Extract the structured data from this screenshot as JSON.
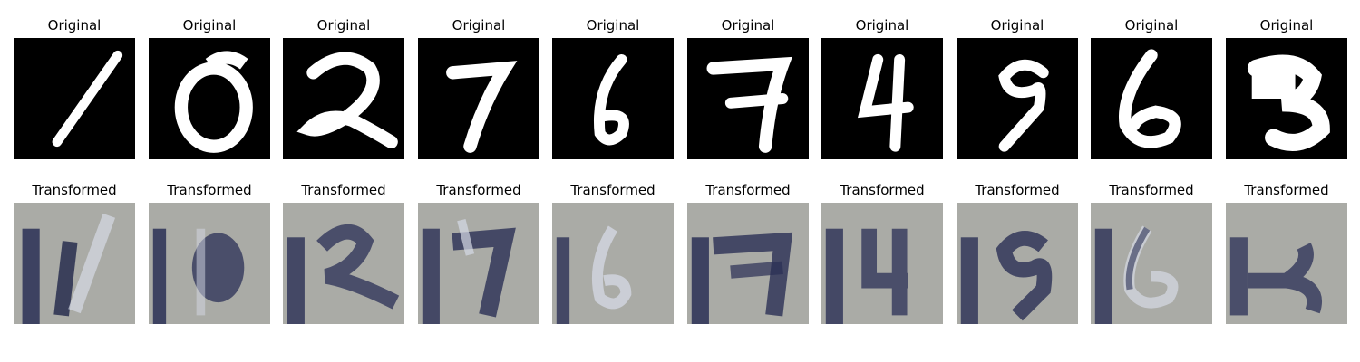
{
  "panels": [
    {
      "original_title": "Original",
      "transformed_title": "Transformed",
      "digit": "1"
    },
    {
      "original_title": "Original",
      "transformed_title": "Transformed",
      "digit": "0"
    },
    {
      "original_title": "Original",
      "transformed_title": "Transformed",
      "digit": "2"
    },
    {
      "original_title": "Original",
      "transformed_title": "Transformed",
      "digit": "7"
    },
    {
      "original_title": "Original",
      "transformed_title": "Transformed",
      "digit": "6"
    },
    {
      "original_title": "Original",
      "transformed_title": "Transformed",
      "digit": "7"
    },
    {
      "original_title": "Original",
      "transformed_title": "Transformed",
      "digit": "4"
    },
    {
      "original_title": "Original",
      "transformed_title": "Transformed",
      "digit": "9"
    },
    {
      "original_title": "Original",
      "transformed_title": "Transformed",
      "digit": "6"
    },
    {
      "original_title": "Original",
      "transformed_title": "Transformed",
      "digit": "3"
    }
  ],
  "colors": {
    "original_background": "#000000",
    "original_stroke": "#ffffff",
    "transformed_background": "#aaaba6",
    "transformed_stroke": "#2a2f55",
    "transformed_highlight": "#d6dae6"
  }
}
